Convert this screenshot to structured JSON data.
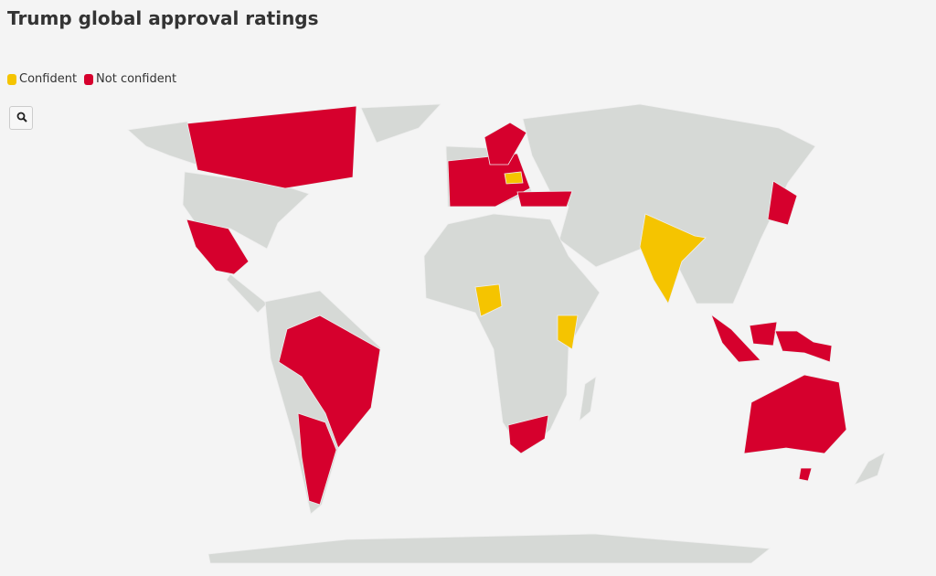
{
  "title": "Trump global approval ratings",
  "legend": [
    {
      "label": "Confident",
      "color": "#f5c400"
    },
    {
      "label": "Not confident",
      "color": "#d6002d"
    }
  ],
  "land_color": "#d6d9d6",
  "background": "#f4f4f4"
}
